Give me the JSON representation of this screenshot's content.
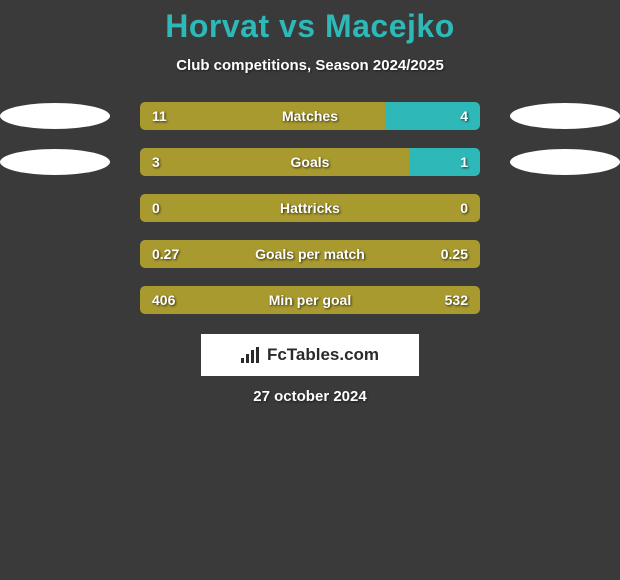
{
  "title": "Horvat vs Macejko",
  "subtitle": "Club competitions, Season 2024/2025",
  "colors": {
    "player1": "#a89a2e",
    "player2": "#2eb8b8",
    "background": "#3a3a3a",
    "text": "#ffffff",
    "title_color": "#2eb8b8"
  },
  "rows": [
    {
      "label": "Matches",
      "left_value": "11",
      "right_value": "4",
      "left_pct": 72,
      "right_pct": 28,
      "show_ellipses": true
    },
    {
      "label": "Goals",
      "left_value": "3",
      "right_value": "1",
      "left_pct": 79,
      "right_pct": 21,
      "show_ellipses": true
    },
    {
      "label": "Hattricks",
      "left_value": "0",
      "right_value": "0",
      "left_pct": 100,
      "right_pct": 0,
      "show_ellipses": false
    },
    {
      "label": "Goals per match",
      "left_value": "0.27",
      "right_value": "0.25",
      "left_pct": 100,
      "right_pct": 0,
      "show_ellipses": false
    },
    {
      "label": "Min per goal",
      "left_value": "406",
      "right_value": "532",
      "left_pct": 100,
      "right_pct": 0,
      "show_ellipses": false
    }
  ],
  "logo_text": "FcTables.com",
  "date": "27 october 2024"
}
